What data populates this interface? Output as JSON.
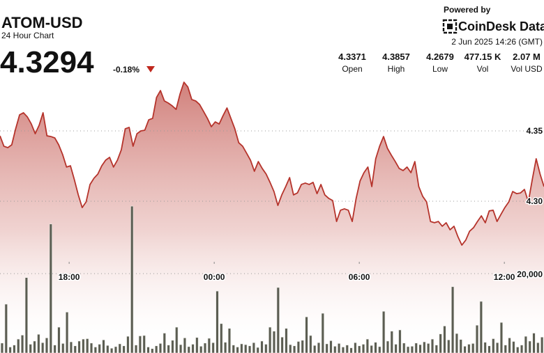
{
  "header": {
    "symbol": "ATOM-USD",
    "subtitle": "24 Hour Chart",
    "price": "4.3294",
    "change": "-0.18%",
    "powered_by": "Powered by",
    "brand": "CoinDesk Data",
    "timestamp": "2 Jun 2025 14:26 (GMT)",
    "stats": [
      {
        "value": "4.3371",
        "label": "Open"
      },
      {
        "value": "4.3857",
        "label": "High"
      },
      {
        "value": "4.2679",
        "label": "Low"
      },
      {
        "value": "477.15 K",
        "label": "Vol"
      },
      {
        "value": "2.07 M",
        "label": "Vol USD"
      }
    ]
  },
  "chart_data": {
    "type": "line",
    "xlim": [
      15.14,
      37.64
    ],
    "xticks": [
      {
        "value": 18,
        "label": "18:00"
      },
      {
        "value": 24,
        "label": "00:00"
      },
      {
        "value": 30,
        "label": "06:00"
      },
      {
        "value": 36,
        "label": "12:00"
      }
    ],
    "ylim": [
      4.26,
      4.39
    ],
    "yticks": [
      4.35,
      {
        "value": 4.3,
        "label": "4.30"
      }
    ],
    "y2lim": [
      0,
      40000
    ],
    "y2ticks": [
      {
        "value": 20000,
        "label": "20,000"
      }
    ],
    "grid": true,
    "series": [
      {
        "name": "Price",
        "color": "#b5332b",
        "values": [
          4.3465,
          4.3391,
          4.3381,
          4.3401,
          4.3515,
          4.3614,
          4.3629,
          4.3599,
          4.3549,
          4.348,
          4.354,
          4.3629,
          4.3465,
          4.346,
          4.345,
          4.3401,
          4.3332,
          4.3243,
          4.3252,
          4.3153,
          4.3045,
          4.2955,
          4.2995,
          4.3119,
          4.3163,
          4.3193,
          4.3252,
          4.3292,
          4.3312,
          4.3243,
          4.3292,
          4.3366,
          4.3515,
          4.3525,
          4.3391,
          4.348,
          4.35,
          4.3505,
          4.3579,
          4.3589,
          4.3738,
          4.3787,
          4.3713,
          4.3698,
          4.3678,
          4.3653,
          4.3762,
          4.3846,
          4.3812,
          4.3723,
          4.3713,
          4.3688,
          4.3639,
          4.3589,
          4.353,
          4.3564,
          4.3549,
          4.3609,
          4.3663,
          4.3589,
          4.3515,
          4.3416,
          4.3391,
          4.3342,
          4.3292,
          4.3213,
          4.3282,
          4.3233,
          4.3193,
          4.3134,
          4.3069,
          4.297,
          4.3045,
          4.3104,
          4.3168,
          4.3045,
          4.3059,
          4.3119,
          4.3129,
          4.3119,
          4.3134,
          4.3054,
          4.3119,
          4.3045,
          4.302,
          4.3005,
          4.2856,
          4.2936,
          4.2946,
          4.2936,
          4.2856,
          4.302,
          4.3144,
          4.3203,
          4.3243,
          4.3104,
          4.3302,
          4.3391,
          4.346,
          4.3376,
          4.3327,
          4.3282,
          4.3233,
          4.3218,
          4.3243,
          4.3203,
          4.3282,
          4.3104,
          4.3035,
          4.2995,
          4.2856,
          4.2847,
          4.2856,
          4.2822,
          4.2847,
          4.2797,
          4.2822,
          4.2748,
          4.2688,
          4.2723,
          4.2787,
          4.2812,
          4.2856,
          4.2896,
          4.2847,
          4.2931,
          4.2936,
          4.2856,
          4.2906,
          4.2955,
          4.2995,
          4.3069,
          4.3054,
          4.3059,
          4.3084,
          4.2995,
          4.3153,
          4.3302,
          4.3193,
          4.3104
        ]
      },
      {
        "name": "Volume",
        "type": "bar",
        "axis": "y2",
        "color": "#5b5d52",
        "values": [
          2500,
          12300,
          1500,
          2000,
          3500,
          4500,
          19000,
          2200,
          3000,
          4700,
          2600,
          3800,
          32500,
          2000,
          6500,
          2400,
          10300,
          2800,
          1800,
          3000,
          3500,
          3600,
          2500,
          1500,
          2200,
          3300,
          1900,
          1200,
          1600,
          2300,
          1800,
          4200,
          37000,
          2000,
          4300,
          4400,
          1500,
          1100,
          1800,
          2400,
          5000,
          2000,
          3200,
          6500,
          2100,
          3800,
          1600,
          2200,
          3900,
          1700,
          2500,
          3700,
          2600,
          15600,
          7400,
          2700,
          6200,
          2000,
          1500,
          2300,
          2100,
          1800,
          2600,
          1400,
          3000,
          2200,
          6500,
          5500,
          16500,
          4000,
          6200,
          2100,
          1800,
          2900,
          3200,
          9100,
          4400,
          1900,
          2600,
          10000,
          2300,
          3100,
          1700,
          2400,
          1500,
          2000,
          1300,
          2600,
          1800,
          2200,
          3500,
          1900,
          2700,
          1600,
          10500,
          3000,
          5500,
          2200,
          5800,
          2500,
          1600,
          1700,
          2500,
          2100,
          2800,
          2400,
          3500,
          2000,
          4800,
          6800,
          3300,
          16700,
          4900,
          3400,
          1700,
          2200,
          2400,
          7000,
          13000,
          2700,
          1800,
          3600,
          2600,
          7700,
          2000,
          3800,
          2900,
          1500,
          2000,
          4200,
          3000,
          5000,
          2600,
          4000
        ]
      }
    ]
  }
}
